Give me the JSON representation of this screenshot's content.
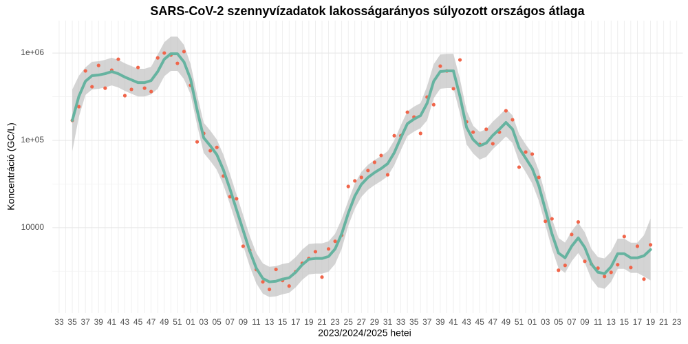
{
  "chart_data": {
    "type": "line",
    "title": "SARS-CoV-2 szennyvízadatok lakosságarányos súlyozott országos átlaga",
    "x_label": "2023/2024/2025 hetei",
    "y_label": "Koncentráció (GC/L)",
    "log_y": true,
    "grid": true,
    "color": "#f0654a",
    "smooth_color": "#66b3a0",
    "ribbon_color": "#bdbdbd",
    "ylim": [
      1050,
      2350000
    ],
    "yticks": [
      {
        "value": 1000000,
        "label": "1e+06"
      },
      {
        "value": 100000,
        "label": "1e+05"
      },
      10000
    ],
    "categories": [
      "33",
      null,
      "35",
      null,
      "37",
      null,
      "39",
      null,
      "41",
      null,
      "43",
      null,
      "45",
      null,
      "47",
      null,
      "49",
      null,
      "51",
      null,
      "01",
      null,
      "03",
      null,
      "05",
      null,
      "07",
      null,
      "09",
      null,
      "11",
      null,
      "13",
      null,
      "15",
      null,
      "17",
      null,
      "19",
      null,
      "21",
      null,
      "23",
      null,
      "25",
      null,
      "27",
      null,
      "29",
      null,
      "31",
      null,
      "33",
      null,
      "35",
      null,
      "37",
      null,
      "39",
      null,
      "41",
      null,
      "43",
      null,
      "45",
      null,
      "47",
      null,
      "49",
      null,
      "51",
      null,
      "01",
      null,
      "03",
      null,
      "05",
      null,
      "07",
      null,
      "09",
      null,
      "11",
      null,
      "13",
      null,
      "15",
      null,
      "17",
      null,
      "19",
      null,
      "21",
      null,
      "23"
    ],
    "values": [
      null,
      null,
      169000,
      243000,
      624000,
      411000,
      721000,
      396000,
      636000,
      849000,
      325000,
      383000,
      683000,
      396000,
      362000,
      880000,
      1000000,
      947000,
      762000,
      1040000,
      427000,
      96000,
      120000,
      76000,
      83000,
      39000,
      22600,
      21400,
      6120,
      5500,
      3310,
      2390,
      1960,
      3320,
      2480,
      2140,
      3130,
      3900,
      4430,
      5300,
      2710,
      5700,
      6970,
      8190,
      29600,
      34300,
      37600,
      45100,
      56000,
      67100,
      40300,
      113000,
      113000,
      210000,
      185000,
      120000,
      313000,
      256000,
      708000,
      624000,
      390000,
      834000,
      163000,
      124000,
      89800,
      134000,
      91400,
      124000,
      218000,
      172000,
      49300,
      73400,
      69600,
      37600,
      11800,
      12600,
      3250,
      3690,
      8340,
      11600,
      4110,
      3830,
      3430,
      2760,
      3070,
      3760,
      7910,
      3490,
      6120,
      2570,
      6350,
      null,
      null,
      null,
      null
    ],
    "smooth": [
      null,
      null,
      169000,
      319000,
      475000,
      550000,
      560000,
      580000,
      613000,
      580000,
      530000,
      493000,
      458000,
      458000,
      484000,
      613000,
      849000,
      982000,
      982000,
      790000,
      502000,
      222000,
      107000,
      86500,
      68400,
      45800,
      27600,
      16000,
      9310,
      5400,
      3430,
      2610,
      2390,
      2430,
      2570,
      2660,
      3080,
      3760,
      4340,
      4430,
      4430,
      4670,
      5700,
      8490,
      14600,
      23000,
      31300,
      37600,
      42700,
      47500,
      54000,
      72100,
      107000,
      155000,
      175000,
      192000,
      266000,
      475000,
      613000,
      624000,
      624000,
      319000,
      141000,
      102000,
      86500,
      93100,
      114000,
      134000,
      160000,
      134000,
      81800,
      62400,
      47500,
      30200,
      16000,
      8490,
      5110,
      4510,
      6120,
      7620,
      5920,
      3830,
      3080,
      2970,
      3560,
      5020,
      5020,
      4510,
      4510,
      4750,
      5600,
      null,
      null,
      null,
      null
    ],
    "smooth_lower": [
      null,
      null,
      74800,
      185000,
      330000,
      382000,
      389000,
      403000,
      426000,
      403000,
      368000,
      342000,
      318000,
      318000,
      336000,
      390000,
      541000,
      625000,
      625000,
      503000,
      337000,
      149000,
      71800,
      58100,
      45900,
      30700,
      18500,
      10700,
      6250,
      3620,
      2300,
      1750,
      1600,
      1630,
      1720,
      1790,
      2070,
      2520,
      2910,
      2970,
      2970,
      3130,
      3830,
      5700,
      10500,
      16500,
      22500,
      27100,
      30700,
      34200,
      38800,
      51900,
      77000,
      112000,
      126000,
      138000,
      169000,
      303000,
      390000,
      397000,
      397000,
      203000,
      89800,
      70800,
      60100,
      64700,
      79200,
      93100,
      111000,
      93100,
      56800,
      43300,
      31900,
      20300,
      10700,
      5700,
      3430,
      3030,
      4110,
      5110,
      3970,
      2570,
      2070,
      1990,
      2390,
      3370,
      3370,
      3030,
      3030,
      2760,
      2480,
      null,
      null,
      null,
      null
    ],
    "smooth_upper": [
      null,
      null,
      382000,
      549000,
      684000,
      792000,
      806000,
      835000,
      883000,
      835000,
      763000,
      710000,
      660000,
      660000,
      697000,
      962000,
      1330000,
      1540000,
      1540000,
      1240000,
      748000,
      331000,
      159000,
      129000,
      102000,
      68200,
      41100,
      23800,
      13900,
      8050,
      5110,
      3890,
      3560,
      3620,
      3830,
      3960,
      4590,
      5600,
      6470,
      6600,
      6600,
      6960,
      8490,
      12600,
      20300,
      32000,
      43500,
      52300,
      59400,
      66000,
      75100,
      100000,
      149000,
      215000,
      243000,
      267000,
      418000,
      746000,
      962000,
      980000,
      980000,
      501000,
      221000,
      147000,
      125000,
      134000,
      164000,
      193000,
      230000,
      193000,
      118000,
      89900,
      70800,
      45000,
      23800,
      12600,
      7610,
      6720,
      9120,
      11400,
      8820,
      5710,
      4590,
      4430,
      5300,
      7480,
      7480,
      6720,
      6720,
      8170,
      12700,
      null,
      null,
      null,
      null
    ]
  }
}
